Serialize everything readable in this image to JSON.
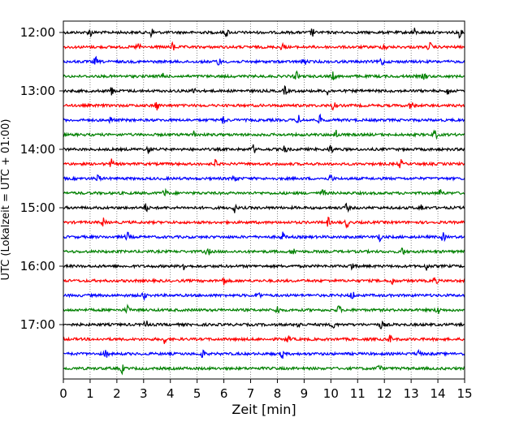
{
  "chart_data": {
    "type": "line",
    "title": "",
    "xlabel": "Zeit  [min]",
    "ylabel": "UTC (Lokalzeit = UTC + 01:00)",
    "xlim": [
      0,
      15
    ],
    "x_ticks": [
      0,
      1,
      2,
      3,
      4,
      5,
      6,
      7,
      8,
      9,
      10,
      11,
      12,
      13,
      14,
      15
    ],
    "x_tick_labels": [
      "0",
      "1",
      "2",
      "3",
      "4",
      "5",
      "6",
      "7",
      "8",
      "9",
      "10",
      "11",
      "12",
      "13",
      "14",
      "15"
    ],
    "y_tick_labels": [
      "12:00",
      "13:00",
      "14:00",
      "15:00",
      "16:00",
      "17:00"
    ],
    "x_grid": "dotted vertical lines at each minute",
    "trace_colors": [
      "#000000",
      "#ff0000",
      "#0000ff",
      "#008000"
    ],
    "traces": [
      {
        "start": "12:00",
        "color": "#000000"
      },
      {
        "start": "12:15",
        "color": "#ff0000"
      },
      {
        "start": "12:30",
        "color": "#0000ff"
      },
      {
        "start": "12:45",
        "color": "#008000"
      },
      {
        "start": "13:00",
        "color": "#000000"
      },
      {
        "start": "13:15",
        "color": "#ff0000"
      },
      {
        "start": "13:30",
        "color": "#0000ff"
      },
      {
        "start": "13:45",
        "color": "#008000"
      },
      {
        "start": "14:00",
        "color": "#000000"
      },
      {
        "start": "14:15",
        "color": "#ff0000"
      },
      {
        "start": "14:30",
        "color": "#0000ff"
      },
      {
        "start": "14:45",
        "color": "#008000"
      },
      {
        "start": "15:00",
        "color": "#000000"
      },
      {
        "start": "15:15",
        "color": "#ff0000"
      },
      {
        "start": "15:30",
        "color": "#0000ff"
      },
      {
        "start": "15:45",
        "color": "#008000"
      },
      {
        "start": "16:00",
        "color": "#000000"
      },
      {
        "start": "16:15",
        "color": "#ff0000"
      },
      {
        "start": "16:30",
        "color": "#0000ff"
      },
      {
        "start": "16:45",
        "color": "#008000"
      },
      {
        "start": "17:00",
        "color": "#000000"
      },
      {
        "start": "17:15",
        "color": "#ff0000"
      },
      {
        "start": "17:30",
        "color": "#0000ff"
      },
      {
        "start": "17:45",
        "color": "#008000"
      }
    ],
    "events": [
      [
        1.0,
        3.3,
        6.1,
        9.3,
        13.1,
        14.8
      ],
      [
        2.8,
        4.1,
        8.2,
        12.0,
        13.7
      ],
      [
        1.2,
        5.8,
        9.0,
        11.9
      ],
      [
        3.7,
        8.7,
        10.1,
        13.5
      ],
      [
        1.8,
        4.9,
        8.3,
        9.9,
        14.4
      ],
      [
        3.5,
        10.1,
        13.0
      ],
      [
        1.8,
        6.0,
        8.8,
        9.6
      ],
      [
        4.9,
        10.2,
        13.9
      ],
      [
        3.2,
        7.1,
        8.3,
        10.0
      ],
      [
        1.8,
        5.7,
        12.6
      ],
      [
        1.3,
        6.4,
        10.0
      ],
      [
        3.8,
        9.7,
        14.1
      ],
      [
        3.1,
        6.4,
        10.6,
        13.4
      ],
      [
        1.5,
        9.9,
        10.6
      ],
      [
        2.4,
        8.2,
        11.8,
        14.2
      ],
      [
        5.4,
        8.6,
        12.7
      ],
      [
        4.5,
        10.8,
        13.6
      ],
      [
        6.0,
        12.3,
        13.9
      ],
      [
        3.0,
        7.3,
        10.8
      ],
      [
        2.4,
        8.0,
        10.3,
        14.0
      ],
      [
        3.1,
        8.8,
        10.1,
        11.9
      ],
      [
        3.8,
        8.4,
        12.2
      ],
      [
        1.6,
        5.2,
        8.2,
        13.3
      ],
      [
        2.2,
        11.8
      ]
    ]
  }
}
